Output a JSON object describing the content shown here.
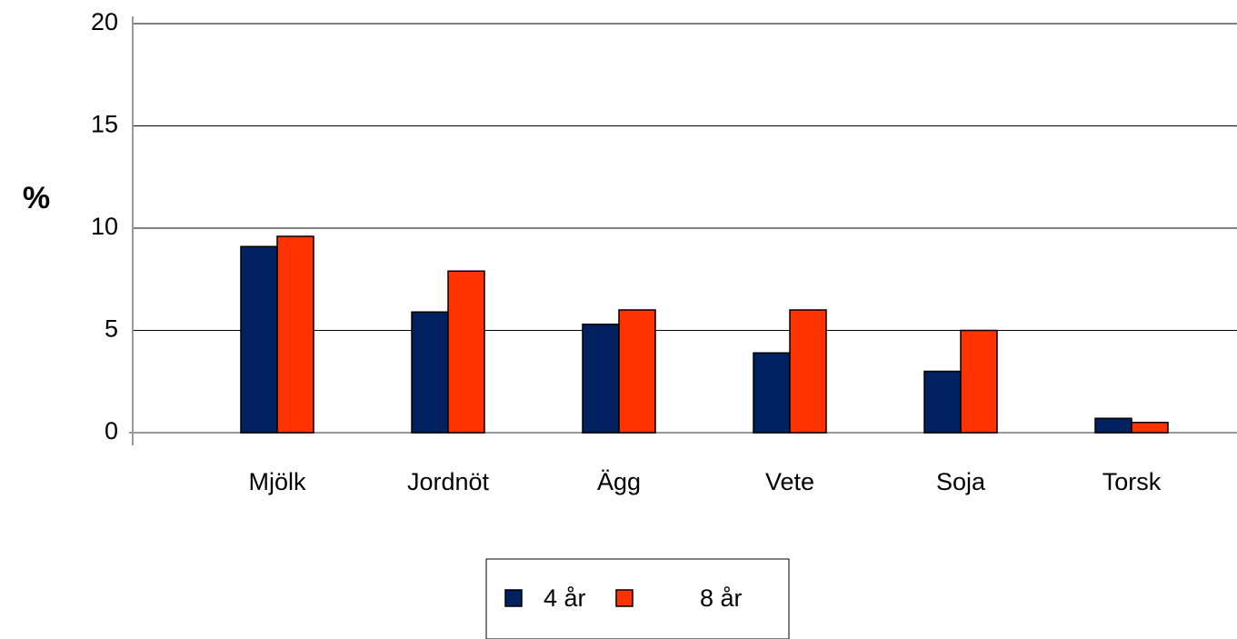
{
  "chart_data": {
    "type": "bar",
    "ylabel": "%",
    "categories": [
      "Mjölk",
      "Jordnöt",
      "Ägg",
      "Vete",
      "Soja",
      "Torsk"
    ],
    "series": [
      {
        "name": "4 år",
        "color": "#002060",
        "values": [
          9.1,
          5.9,
          5.3,
          3.9,
          3.0,
          0.7
        ]
      },
      {
        "name": "8 år",
        "color": "#ff3300",
        "values": [
          9.6,
          7.9,
          6.0,
          6.0,
          5.0,
          0.5
        ]
      }
    ],
    "ylim": [
      0,
      20
    ],
    "yticks": [
      0,
      5,
      10,
      15,
      20
    ],
    "grid": true,
    "legend": "bottom"
  }
}
